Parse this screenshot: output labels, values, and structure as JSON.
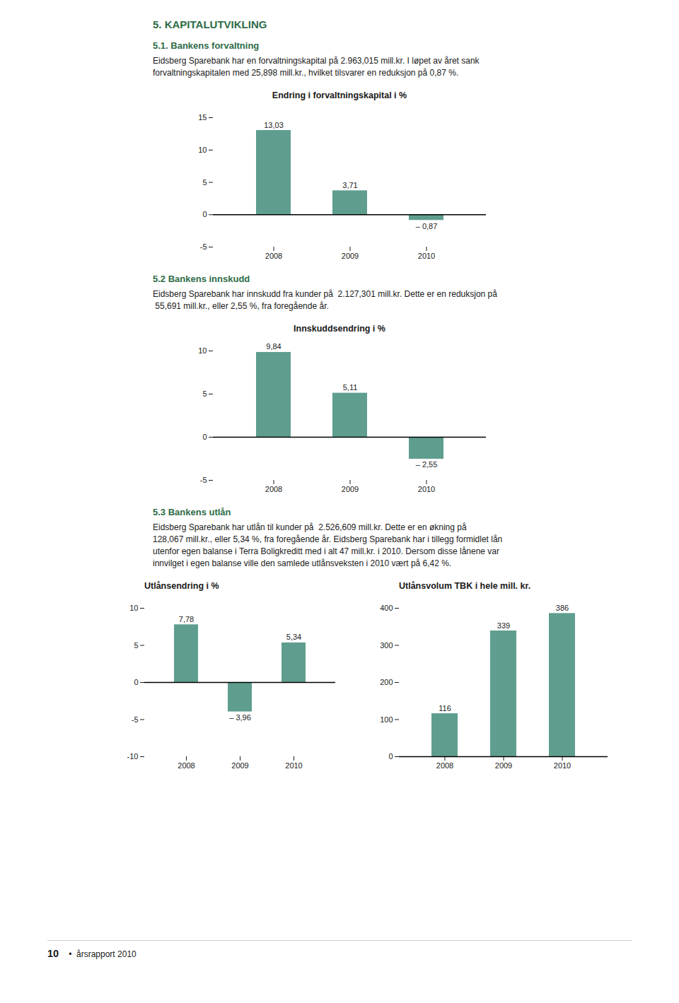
{
  "title": "5. KAPITALUTVIKLING",
  "annotations": [
    "10",
    "•  årsrapport 2010"
  ],
  "chart_data": [
    {
      "type": "bar",
      "title": "Endring i forvaltningskapital i %",
      "annotations": [
        "5.1. Bankens forvaltning",
        "Eidsberg Sparebank har en forvaltningskapital på 2.963,015 mill.kr. I løpet av året sank",
        "forvaltningskapitalen med 25,898 mill.kr., hvilket tilsvarer en reduksjon på 0,87 %."
      ],
      "categories": [
        "2008",
        "2009",
        "2010"
      ],
      "values": [
        13.03,
        3.71,
        -0.87
      ],
      "value_labels": [
        "13,03",
        "3,71",
        "– 0,87"
      ],
      "data_labels": true,
      "color": "#5f9e8f",
      "ylim": [
        -5,
        15
      ],
      "yticks": [
        -5,
        0,
        5,
        10,
        15
      ],
      "grid": false
    },
    {
      "type": "bar",
      "title": "Innskuddsendring i %",
      "annotations": [
        "5.2 Bankens innskudd",
        "Eidsberg Sparebank har innskudd fra kunder på  2.127,301 mill.kr. Dette er en reduksjon på",
        " 55,691 mill.kr., eller 2,55 %, fra foregående år."
      ],
      "categories": [
        "2008",
        "2009",
        "2010"
      ],
      "values": [
        9.84,
        5.11,
        -2.55
      ],
      "value_labels": [
        "9,84",
        "5,11",
        "– 2,55"
      ],
      "data_labels": true,
      "color": "#5f9e8f",
      "ylim": [
        -5,
        10
      ],
      "yticks": [
        -5,
        0,
        5,
        10
      ],
      "grid": false
    },
    {
      "type": "bar",
      "title": "Utlånsendring i %",
      "annotations": [
        "5.3 Bankens utlån",
        "Eidsberg Sparebank har utlån til kunder på  2.526,609 mill.kr. Dette er en økning på",
        "128,067 mill.kr., eller 5,34 %, fra foregående år. Eidsberg Sparebank har i tillegg formidlet lån",
        "utenfor egen balanse i Terra Boligkreditt med i alt 47 mill.kr. i 2010. Dersom disse lånene var",
        "innvilget i egen balanse ville den samlede utlånsveksten i 2010 vært på 6,42 %."
      ],
      "categories": [
        "2008",
        "2009",
        "2010"
      ],
      "values": [
        7.78,
        -3.96,
        5.34
      ],
      "value_labels": [
        "7,78",
        "– 3,96",
        "5,34"
      ],
      "data_labels": true,
      "color": "#5f9e8f",
      "ylim": [
        -10,
        10
      ],
      "yticks": [
        -10,
        -5,
        0,
        5,
        10
      ],
      "grid": false
    },
    {
      "type": "bar",
      "title": "Utlånsvolum TBK i hele mill. kr.",
      "categories": [
        "2008",
        "2009",
        "2010"
      ],
      "values": [
        116,
        339,
        386
      ],
      "value_labels": [
        "116",
        "339",
        "386"
      ],
      "data_labels": true,
      "color": "#5f9e8f",
      "ylim": [
        0,
        400
      ],
      "yticks": [
        0,
        100,
        200,
        300,
        400
      ],
      "grid": false
    }
  ]
}
